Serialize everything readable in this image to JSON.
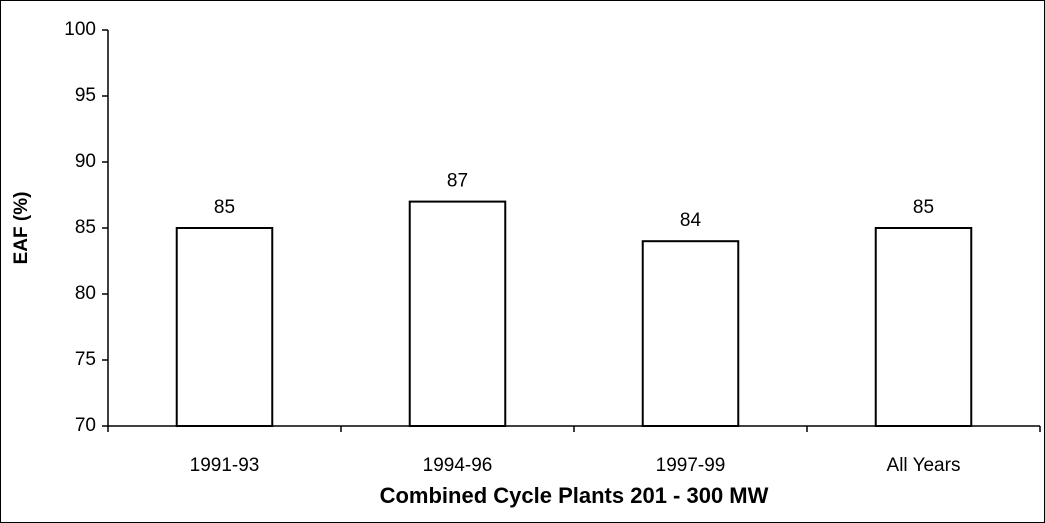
{
  "chart_data": {
    "type": "bar",
    "categories": [
      "1991-93",
      "1994-96",
      "1997-99",
      "All Years"
    ],
    "values": [
      85,
      87,
      84,
      85
    ],
    "color": "#ffffff",
    "edge_color": "#000000",
    "ylim": [
      70,
      100
    ],
    "yticks": [
      70,
      75,
      80,
      85,
      90,
      95,
      100
    ],
    "grid": false,
    "xlabel": "Combined Cycle Plants 201 - 300 MW",
    "ylabel": "EAF (%)"
  }
}
